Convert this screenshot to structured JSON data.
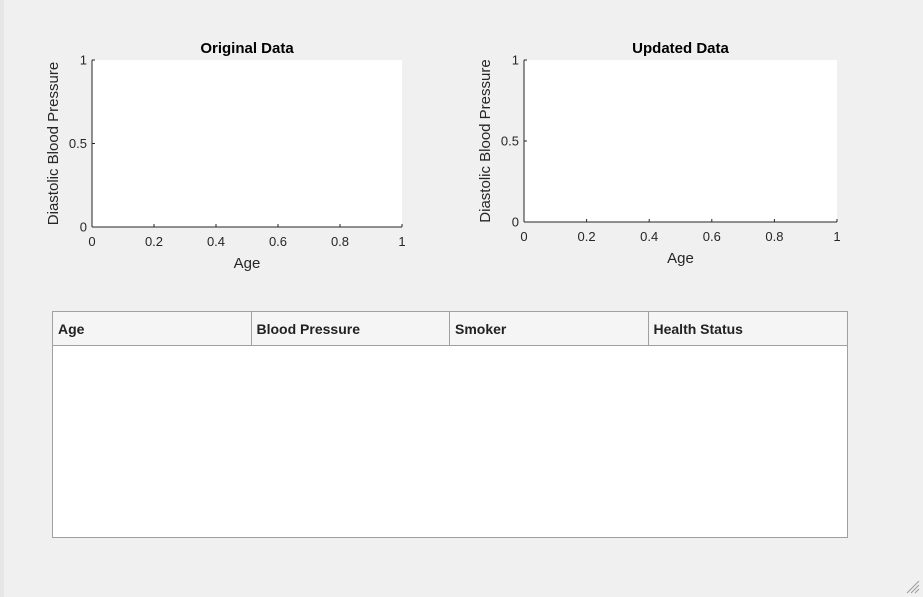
{
  "charts": [
    {
      "title": "Original Data",
      "xlabel": "Age",
      "ylabel": "Diastolic Blood Pressure",
      "xticks": [
        "0",
        "0.2",
        "0.4",
        "0.6",
        "0.8",
        "1"
      ],
      "yticks": [
        "0",
        "0.5",
        "1"
      ]
    },
    {
      "title": "Updated Data",
      "xlabel": "Age",
      "ylabel": "Diastolic Blood Pressure",
      "xticks": [
        "0",
        "0.2",
        "0.4",
        "0.6",
        "0.8",
        "1"
      ],
      "yticks": [
        "0",
        "0.5",
        "1"
      ]
    }
  ],
  "chart_data": [
    {
      "type": "scatter",
      "title": "Original Data",
      "xlabel": "Age",
      "ylabel": "Diastolic Blood Pressure",
      "xlim": [
        0,
        1
      ],
      "ylim": [
        0,
        1
      ],
      "series": [],
      "grid": false
    },
    {
      "type": "scatter",
      "title": "Updated Data",
      "xlabel": "Age",
      "ylabel": "Diastolic Blood Pressure",
      "xlim": [
        0,
        1
      ],
      "ylim": [
        0,
        1
      ],
      "series": [],
      "grid": false
    }
  ],
  "table": {
    "columns": [
      "Age",
      "Blood Pressure",
      "Smoker",
      "Health Status"
    ],
    "rows": []
  },
  "icons": {
    "resize": "resize-grip-icon"
  }
}
